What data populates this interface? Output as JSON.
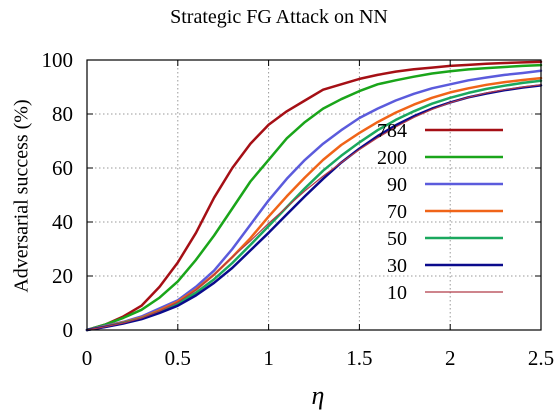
{
  "chart_data": {
    "type": "line",
    "title": "Strategic FG Attack on NN",
    "xlabel": "η",
    "ylabel": "Adversarial success (%)",
    "xlim": [
      0,
      2.5
    ],
    "ylim": [
      0,
      100
    ],
    "xticks": [
      "0",
      "0.5",
      "1",
      "1.5",
      "2",
      "2.5"
    ],
    "yticks": [
      "0",
      "20",
      "40",
      "60",
      "80",
      "100"
    ],
    "grid": true,
    "legend_position": "right",
    "x": [
      0,
      0.1,
      0.2,
      0.3,
      0.4,
      0.5,
      0.6,
      0.7,
      0.8,
      0.9,
      1.0,
      1.1,
      1.2,
      1.3,
      1.4,
      1.5,
      1.6,
      1.7,
      1.8,
      1.9,
      2.0,
      2.1,
      2.2,
      2.3,
      2.4,
      2.5
    ],
    "series": [
      {
        "name": "784",
        "color": "#a50f15",
        "width": 2.5,
        "values": [
          0,
          2,
          5,
          9,
          16,
          25,
          36,
          49,
          60,
          69,
          76,
          81,
          85,
          89,
          91,
          93,
          94.5,
          95.7,
          96.6,
          97.2,
          97.8,
          98.2,
          98.6,
          98.9,
          99.1,
          99.3
        ]
      },
      {
        "name": "200",
        "color": "#1aa51a",
        "width": 2.5,
        "values": [
          0,
          2,
          4.5,
          7.5,
          12,
          18,
          26,
          35,
          45,
          55,
          63,
          71,
          77,
          82,
          85.5,
          88.5,
          91,
          92.5,
          93.8,
          95,
          95.8,
          96.5,
          97,
          97.4,
          97.8,
          98.1
        ]
      },
      {
        "name": "90",
        "color": "#5b5bdc",
        "width": 2.5,
        "values": [
          0,
          1.5,
          3,
          5,
          8,
          11,
          16,
          22,
          30,
          39,
          48,
          56,
          63,
          69,
          74,
          78.5,
          82,
          85,
          87.5,
          89.5,
          91,
          92.5,
          93.5,
          94.5,
          95.2,
          96
        ]
      },
      {
        "name": "70",
        "color": "#f06418",
        "width": 2.5,
        "values": [
          0,
          1.3,
          2.8,
          4.6,
          7.3,
          10.5,
          15,
          20.5,
          27,
          34,
          42,
          49.5,
          56.5,
          63,
          68.5,
          73,
          77,
          80.5,
          83.5,
          86,
          88,
          89.5,
          90.8,
          91.8,
          92.6,
          93.3
        ]
      },
      {
        "name": "50",
        "color": "#1aa85e",
        "width": 2.5,
        "values": [
          0,
          1.2,
          2.6,
          4.3,
          6.8,
          9.8,
          13.8,
          18.8,
          24.8,
          31.5,
          38.5,
          45.5,
          52.5,
          59,
          64.5,
          69.5,
          74,
          77.8,
          81,
          83.8,
          86,
          87.8,
          89.3,
          90.5,
          91.5,
          92.3
        ]
      },
      {
        "name": "30",
        "color": "#0a0a8c",
        "width": 2.5,
        "values": [
          0,
          1.1,
          2.4,
          4,
          6.3,
          9,
          12.8,
          17.5,
          23,
          29.5,
          36,
          42.8,
          49.5,
          56,
          62,
          67.2,
          71.8,
          75.8,
          79.2,
          82,
          84.3,
          86.2,
          87.6,
          88.8,
          89.8,
          90.6
        ]
      },
      {
        "name": "10",
        "color": "#b03a48",
        "width": 1.2,
        "values": [
          0,
          1.2,
          2.6,
          4.4,
          7,
          10.3,
          14.8,
          20.5,
          27,
          33,
          39.5,
          45.5,
          51.5,
          57,
          62,
          66.8,
          71.2,
          75.2,
          78.7,
          81.7,
          84.2,
          86.2,
          87.8,
          89,
          90,
          90.8
        ]
      }
    ]
  }
}
